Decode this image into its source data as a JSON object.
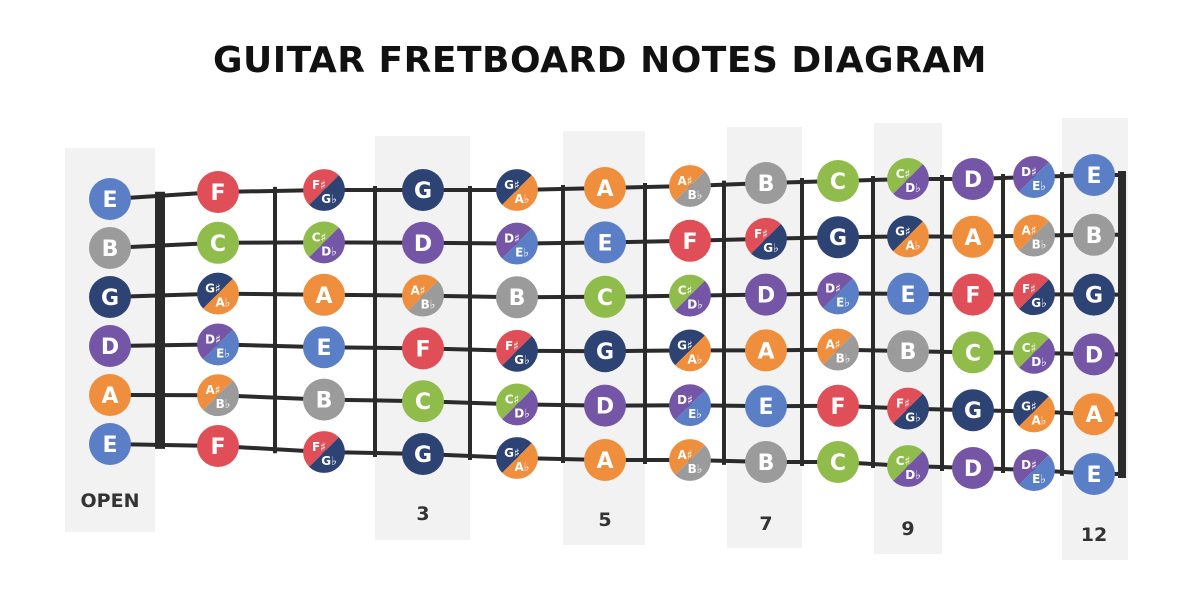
{
  "title": "GUITAR FRETBOARD NOTES DIAGRAM",
  "fret_labels": [
    "OPEN",
    "3",
    "5",
    "7",
    "9",
    "12"
  ],
  "note_colors": {
    "C": "#8fbc4a",
    "D": "#7556a6",
    "E": "#5b7fc6",
    "F": "#e04e57",
    "G": "#2d4373",
    "A": "#ef8f3d",
    "B": "#9b9b9b"
  },
  "strings": [
    {
      "open": "E",
      "notes": [
        "E",
        "F",
        "F#/Gb",
        "G",
        "G#/Ab",
        "A",
        "A#/Bb",
        "B",
        "C",
        "C#/Db",
        "D",
        "D#/Eb",
        "E"
      ]
    },
    {
      "open": "B",
      "notes": [
        "B",
        "C",
        "C#/Db",
        "D",
        "D#/Eb",
        "E",
        "F",
        "F#/Gb",
        "G",
        "G#/Ab",
        "A",
        "A#/Bb",
        "B"
      ]
    },
    {
      "open": "G",
      "notes": [
        "G",
        "G#/Ab",
        "A",
        "A#/Bb",
        "B",
        "C",
        "C#/Db",
        "D",
        "D#/Eb",
        "E",
        "F",
        "F#/Gb",
        "G"
      ]
    },
    {
      "open": "D",
      "notes": [
        "D",
        "D#/Eb",
        "E",
        "F",
        "F#/Gb",
        "G",
        "G#/Ab",
        "A",
        "A#/Bb",
        "B",
        "C",
        "C#/Db",
        "D"
      ]
    },
    {
      "open": "A",
      "notes": [
        "A",
        "A#/Bb",
        "B",
        "C",
        "C#/Db",
        "D",
        "D#/Eb",
        "E",
        "F",
        "F#/Gb",
        "G",
        "G#/Ab",
        "A"
      ]
    },
    {
      "open": "E",
      "notes": [
        "E",
        "F",
        "F#/Gb",
        "G",
        "G#/Ab",
        "A",
        "A#/Bb",
        "B",
        "C",
        "C#/Db",
        "D",
        "D#/Eb",
        "E"
      ]
    }
  ]
}
